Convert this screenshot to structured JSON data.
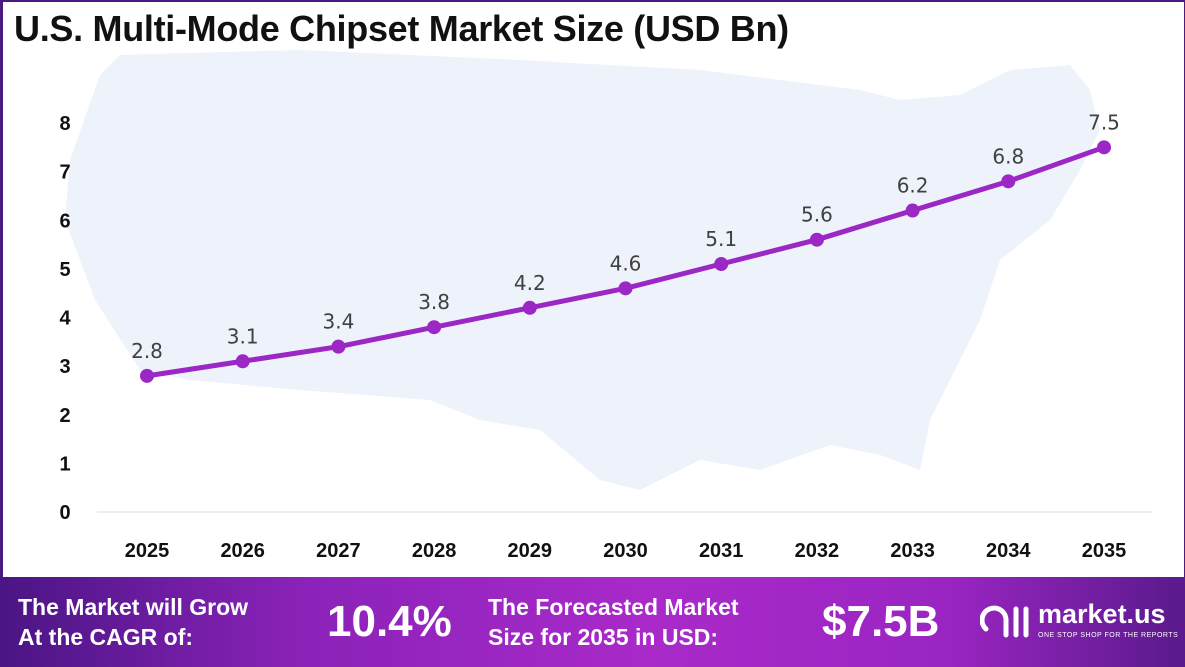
{
  "chart_data": {
    "type": "line",
    "title": "U.S. Multi-Mode Chipset Market Size (USD Bn)",
    "categories": [
      "2025",
      "2026",
      "2027",
      "2028",
      "2029",
      "2030",
      "2031",
      "2032",
      "2033",
      "2034",
      "2035"
    ],
    "values": [
      2.8,
      3.1,
      3.4,
      3.8,
      4.2,
      4.6,
      5.1,
      5.6,
      6.2,
      6.8,
      7.5
    ],
    "data_labels": [
      "2.8",
      "3.1",
      "3.4",
      "3.8",
      "4.2",
      "4.6",
      "5.1",
      "5.6",
      "6.2",
      "6.8",
      "7.5"
    ],
    "yticks": [
      "0",
      "1",
      "2",
      "3",
      "4",
      "5",
      "6",
      "7",
      "8"
    ],
    "ylim": [
      0,
      8
    ],
    "xlabel": "",
    "ylabel": "",
    "grid": false,
    "line_color": "#9b27c4"
  },
  "banner": {
    "cagr_label": [
      "The Market will Grow",
      "At the CAGR of:"
    ],
    "cagr_value": "10.4%",
    "forecast_label": [
      "The Forecasted Market",
      "Size for 2035 in USD:"
    ],
    "forecast_value": "$7.5B",
    "logo_name": "market.us",
    "logo_tagline": "ONE STOP SHOP FOR THE REPORTS"
  }
}
